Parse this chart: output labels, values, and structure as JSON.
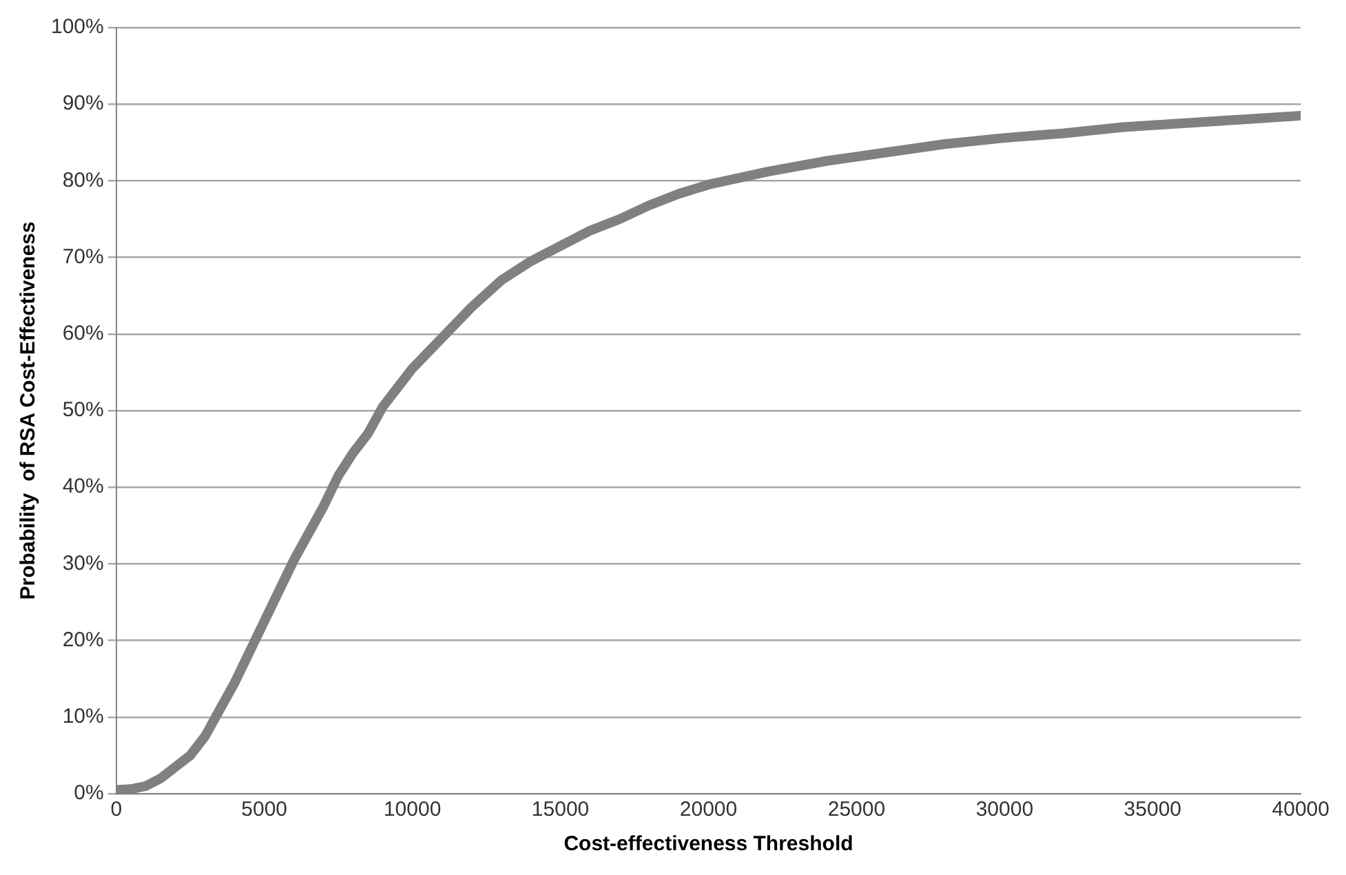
{
  "chart_data": {
    "type": "line",
    "xlabel": "Cost-effectiveness Threshold",
    "ylabel": "Probability  of RSA Cost-Effectiveness",
    "x": [
      0,
      500,
      1000,
      1500,
      2000,
      2500,
      3000,
      3500,
      4000,
      4500,
      5000,
      5500,
      6000,
      6500,
      7000,
      7500,
      8000,
      8500,
      9000,
      9500,
      10000,
      11000,
      12000,
      13000,
      14000,
      15000,
      16000,
      17000,
      18000,
      19000,
      20000,
      22000,
      24000,
      26000,
      28000,
      30000,
      32000,
      34000,
      36000,
      38000,
      40000
    ],
    "series": [
      {
        "color": "#808080",
        "values": [
          0.5,
          0.6,
          1,
          2,
          3.5,
          5,
          7.5,
          11,
          14.5,
          18.5,
          22.5,
          26.5,
          30.5,
          34,
          37.5,
          41.5,
          44.5,
          47,
          50.5,
          53,
          55.5,
          59.5,
          63.5,
          67,
          69.5,
          71.5,
          73.5,
          75,
          76.8,
          78.3,
          79.5,
          81.2,
          82.6,
          83.7,
          84.8,
          85.6,
          86.2,
          87,
          87.5,
          88,
          88.5
        ]
      }
    ],
    "xlim": [
      0,
      40000
    ],
    "xticks": [
      0,
      5000,
      10000,
      15000,
      20000,
      25000,
      30000,
      35000,
      40000
    ],
    "ylim": [
      0,
      100
    ],
    "yticks": [
      {
        "value": 0,
        "label": "0%"
      },
      {
        "value": 10,
        "label": "10%"
      },
      {
        "value": 20,
        "label": "20%"
      },
      {
        "value": 30,
        "label": "30%"
      },
      {
        "value": 40,
        "label": "40%"
      },
      {
        "value": 50,
        "label": "50%"
      },
      {
        "value": 60,
        "label": "60%"
      },
      {
        "value": 70,
        "label": "70%"
      },
      {
        "value": 80,
        "label": "80%"
      },
      {
        "value": 90,
        "label": "90%"
      },
      {
        "value": 100,
        "label": "100%"
      }
    ],
    "grid": "y",
    "legend": false,
    "marker": "none",
    "line_style": "solid"
  }
}
